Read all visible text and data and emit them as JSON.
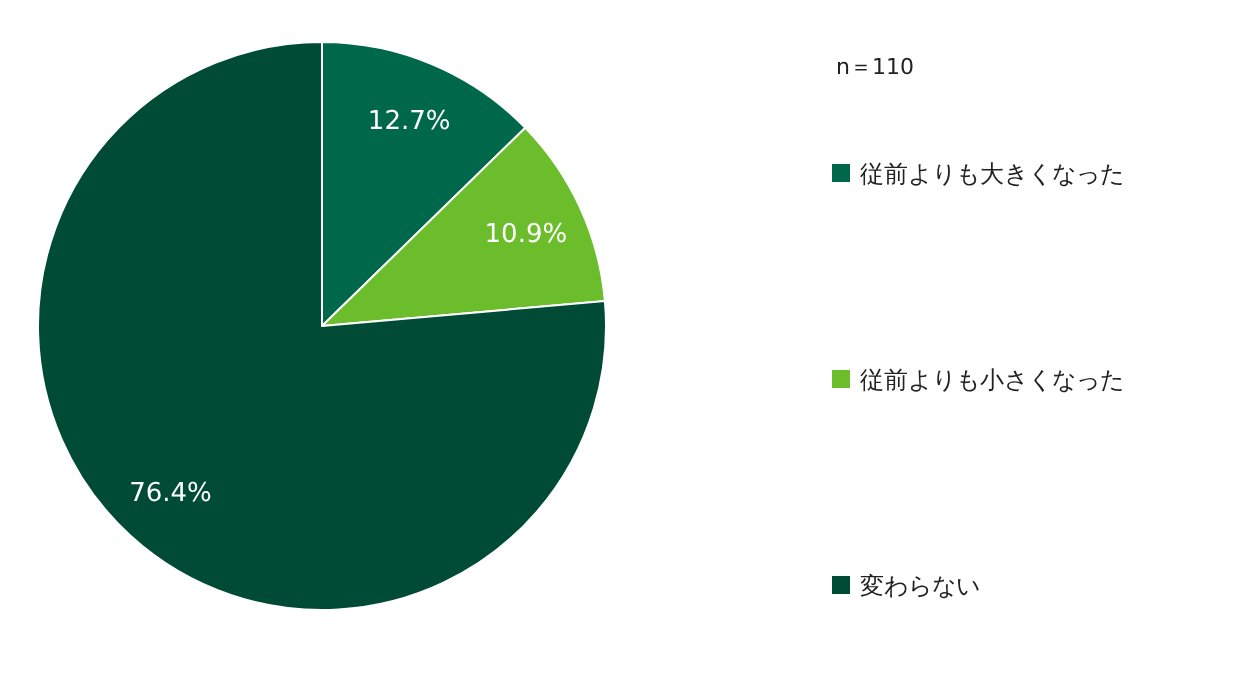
{
  "chart_data": {
    "type": "pie",
    "categories": [
      "従前よりも大きくなった",
      "従前よりも小さくなった",
      "変わらない"
    ],
    "values": [
      12.7,
      10.9,
      76.4
    ],
    "colors": [
      "#00684a",
      "#6cbd2b",
      "#004b35"
    ],
    "value_labels": [
      "12.7%",
      "10.9%",
      "76.4%"
    ],
    "legend": "right",
    "annotations": [
      "n＝110"
    ]
  }
}
